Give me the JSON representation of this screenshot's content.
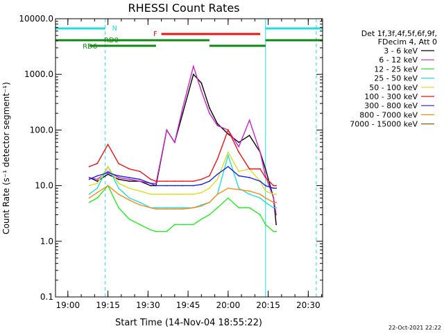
{
  "chart_data": {
    "type": "line",
    "title": "RHESSI Count Rates",
    "xlabel": "Start Time (14-Nov-04 18:55:22)",
    "ylabel": "Count Rate (s⁻¹ detector segment⁻¹)",
    "y_scale": "log",
    "ylim": [
      0.1,
      10000
    ],
    "xlim": [
      "18:55:22",
      "20:35:22"
    ],
    "x_ticks": [
      "19:00",
      "19:15",
      "19:30",
      "19:45",
      "20:00",
      "20:15",
      "20:30"
    ],
    "y_ticks": [
      "0.1",
      "1.0",
      "10.0",
      "100.0",
      "1000.0",
      "10000.0"
    ],
    "grid": false,
    "legend_position": "right",
    "legend_header": [
      "Det 1f,3f,4f,5f,6f,9f,",
      "FDecim 4, Att 0"
    ],
    "footer_date": "22-Oct-2021 22:22",
    "series": [
      {
        "name": "3 - 6 keV",
        "color": "#000000",
        "x": [
          "19:08",
          "19:11",
          "19:15",
          "19:19",
          "19:23",
          "19:27",
          "19:31",
          "19:33",
          "19:37",
          "19:40",
          "19:43",
          "19:47",
          "19:50",
          "19:53",
          "19:56",
          "20:00",
          "20:04",
          "20:08",
          "20:12",
          "20:14",
          "20:17",
          "20:18"
        ],
        "values": [
          14,
          12,
          16,
          13,
          12,
          12,
          10,
          10,
          100,
          60,
          200,
          1000,
          700,
          250,
          130,
          85,
          60,
          80,
          40,
          20,
          6,
          2
        ]
      },
      {
        "name": "6 - 12 keV",
        "color": "#cc22cc",
        "x": [
          "19:08",
          "19:11",
          "19:15",
          "19:19",
          "19:23",
          "19:27",
          "19:31",
          "19:33",
          "19:37",
          "19:40",
          "19:43",
          "19:47",
          "19:50",
          "19:53",
          "19:56",
          "20:00",
          "20:04",
          "20:08",
          "20:12",
          "20:14",
          "20:17",
          "20:18"
        ],
        "values": [
          14,
          13,
          18,
          14,
          13,
          12,
          11,
          11,
          100,
          60,
          250,
          1400,
          500,
          200,
          120,
          100,
          50,
          150,
          40,
          15,
          6,
          3
        ]
      },
      {
        "name": "12 - 25 keV",
        "color": "#22ee22",
        "x": [
          "19:08",
          "19:11",
          "19:15",
          "19:19",
          "19:23",
          "19:27",
          "19:31",
          "19:33",
          "19:37",
          "19:40",
          "19:43",
          "19:47",
          "19:50",
          "19:53",
          "19:56",
          "20:00",
          "20:04",
          "20:08",
          "20:12",
          "20:14",
          "20:17",
          "20:18"
        ],
        "values": [
          5,
          6,
          10,
          4,
          2.5,
          2,
          1.6,
          1.5,
          1.5,
          2,
          2,
          2,
          2.5,
          3,
          4,
          6,
          4,
          4,
          3,
          2,
          1.5,
          1.5
        ]
      },
      {
        "name": "25 - 50 keV",
        "color": "#22dddd",
        "x": [
          "19:08",
          "19:11",
          "19:15",
          "19:19",
          "19:23",
          "19:27",
          "19:31",
          "19:33",
          "19:37",
          "19:40",
          "19:43",
          "19:47",
          "19:50",
          "19:53",
          "19:56",
          "20:00",
          "20:04",
          "20:08",
          "20:12",
          "20:14",
          "20:17",
          "20:18"
        ],
        "values": [
          7,
          9,
          22,
          9,
          6,
          5,
          4,
          4,
          4,
          4,
          4,
          4,
          4.5,
          5,
          7,
          35,
          9,
          7,
          6,
          5,
          4,
          4
        ]
      },
      {
        "name": "50 - 100 keV",
        "color": "#dddd22",
        "x": [
          "19:08",
          "19:11",
          "19:15",
          "19:19",
          "19:23",
          "19:27",
          "19:31",
          "19:33",
          "19:37",
          "19:40",
          "19:43",
          "19:47",
          "19:50",
          "19:53",
          "19:56",
          "20:00",
          "20:04",
          "20:08",
          "20:12",
          "20:14",
          "20:17",
          "20:18"
        ],
        "values": [
          10,
          11,
          22,
          11,
          9,
          8,
          7,
          7,
          7,
          7,
          7,
          7,
          7.5,
          9,
          13,
          40,
          18,
          20,
          12,
          8,
          7,
          7
        ]
      },
      {
        "name": "100 - 300 keV",
        "color": "#ee1111",
        "x": [
          "19:08",
          "19:11",
          "19:15",
          "19:19",
          "19:23",
          "19:27",
          "19:31",
          "19:33",
          "19:37",
          "19:40",
          "19:43",
          "19:47",
          "19:50",
          "19:53",
          "19:56",
          "20:00",
          "20:04",
          "20:08",
          "20:12",
          "20:14",
          "20:17",
          "20:18"
        ],
        "values": [
          22,
          25,
          55,
          25,
          20,
          18,
          13,
          12,
          12,
          12,
          12,
          12,
          13,
          15,
          30,
          100,
          40,
          20,
          20,
          14,
          10,
          10
        ]
      },
      {
        "name": "300 - 800 keV",
        "color": "#1122ee",
        "x": [
          "19:08",
          "19:11",
          "19:15",
          "19:19",
          "19:23",
          "19:27",
          "19:31",
          "19:33",
          "19:37",
          "19:40",
          "19:43",
          "19:47",
          "19:50",
          "19:53",
          "19:56",
          "20:00",
          "20:04",
          "20:08",
          "20:12",
          "20:14",
          "20:17",
          "20:18"
        ],
        "values": [
          13,
          15,
          17,
          15,
          14,
          13,
          11,
          10,
          10,
          10,
          10,
          10,
          10.5,
          12,
          16,
          22,
          15,
          14,
          12,
          10,
          9,
          9
        ]
      },
      {
        "name": "800 - 7000 keV",
        "color": "#ff8811",
        "x": [
          "19:08",
          "19:11",
          "19:15",
          "19:19",
          "19:23",
          "19:27",
          "19:31",
          "19:33",
          "19:37",
          "19:40",
          "19:43",
          "19:47",
          "19:50",
          "19:53",
          "19:56",
          "20:00",
          "20:04",
          "20:08",
          "20:12",
          "20:14",
          "20:17",
          "20:18"
        ],
        "values": [
          6,
          7.5,
          10,
          7,
          5.5,
          4.5,
          4,
          3.8,
          3.8,
          3.8,
          3.8,
          4,
          4.3,
          5,
          7,
          9,
          8.5,
          8,
          7,
          6,
          5,
          5
        ]
      },
      {
        "name": "7000 - 15000 keV",
        "color": "#886611",
        "x": [],
        "values": []
      }
    ],
    "attenuator_states": [
      {
        "label": "N",
        "color": "#22dddd",
        "segments": [
          [
            "18:55:22",
            "19:14"
          ],
          [
            "20:14",
            "20:35:22"
          ]
        ]
      },
      {
        "label": "RD0",
        "color": "#118811",
        "segments": [
          [
            "18:55:22",
            "19:33"
          ],
          [
            "20:14",
            "20:35:22"
          ]
        ]
      },
      {
        "label": "RD6",
        "color": "#118811",
        "segments": [
          [
            "19:08",
            "19:33"
          ],
          [
            "19:53",
            "20:14"
          ]
        ]
      },
      {
        "label": "F",
        "color": "#ee1111",
        "segments": [
          [
            "19:35",
            "20:12"
          ]
        ]
      },
      {
        "label": "",
        "color": "#118811",
        "segments": [
          [
            "19:33",
            "19:53"
          ]
        ]
      }
    ]
  }
}
